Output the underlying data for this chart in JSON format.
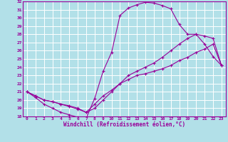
{
  "xlabel": "Windchill (Refroidissement éolien,°C)",
  "xlim": [
    -0.5,
    23.5
  ],
  "ylim": [
    18,
    32
  ],
  "xticks": [
    0,
    1,
    2,
    3,
    4,
    5,
    6,
    7,
    8,
    9,
    10,
    11,
    12,
    13,
    14,
    15,
    16,
    17,
    18,
    19,
    20,
    21,
    22,
    23
  ],
  "yticks": [
    18,
    19,
    20,
    21,
    22,
    23,
    24,
    25,
    26,
    27,
    28,
    29,
    30,
    31,
    32
  ],
  "bg_color": "#b2e0e8",
  "grid_color": "#ffffff",
  "line_color": "#990099",
  "curve1_x": [
    0,
    1,
    2,
    3,
    4,
    5,
    6,
    7,
    8,
    9,
    10,
    11,
    12,
    13,
    14,
    15,
    16,
    17,
    18,
    19,
    20,
    21,
    22,
    23
  ],
  "curve1_y": [
    21.0,
    20.3,
    19.5,
    19.0,
    18.5,
    18.2,
    17.9,
    17.8,
    20.2,
    23.5,
    25.8,
    30.3,
    31.2,
    31.6,
    31.9,
    31.8,
    31.5,
    31.1,
    29.2,
    28.0,
    28.0,
    26.8,
    25.3,
    24.2
  ],
  "curve2_x": [
    0,
    1,
    2,
    3,
    4,
    5,
    6,
    7,
    8,
    9,
    10,
    11,
    12,
    13,
    14,
    15,
    16,
    17,
    18,
    19,
    20,
    21,
    22,
    23
  ],
  "curve2_y": [
    21.0,
    20.5,
    20.0,
    19.8,
    19.5,
    19.3,
    19.0,
    18.5,
    19.0,
    20.0,
    21.0,
    22.0,
    23.0,
    23.5,
    24.0,
    24.5,
    25.2,
    26.0,
    26.8,
    27.5,
    28.0,
    27.8,
    27.5,
    24.2
  ],
  "curve3_x": [
    0,
    1,
    2,
    3,
    4,
    5,
    6,
    7,
    8,
    9,
    10,
    11,
    12,
    13,
    14,
    15,
    16,
    17,
    18,
    19,
    20,
    21,
    22,
    23
  ],
  "curve3_y": [
    21.0,
    20.5,
    20.0,
    19.8,
    19.5,
    19.2,
    18.9,
    18.5,
    19.5,
    20.5,
    21.2,
    22.0,
    22.5,
    23.0,
    23.2,
    23.5,
    23.8,
    24.2,
    24.8,
    25.2,
    25.8,
    26.2,
    26.8,
    24.2
  ]
}
